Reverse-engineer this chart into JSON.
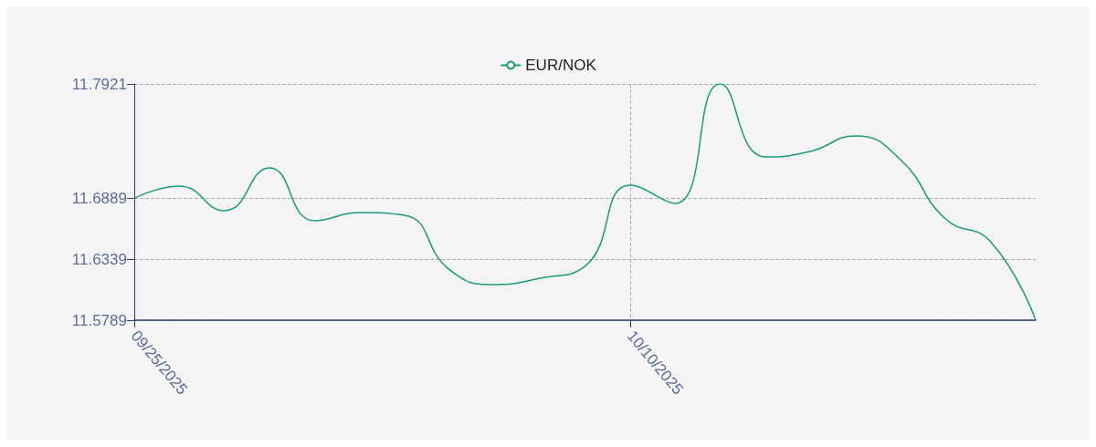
{
  "chart_data": {
    "type": "line",
    "categories": [
      "09/25/2025",
      null,
      null,
      null,
      null,
      null,
      null,
      null,
      null,
      null,
      null,
      "10/10/2025",
      null,
      null,
      null,
      null,
      null,
      null,
      null,
      null,
      null
    ],
    "series": [
      {
        "name": "EUR/NOK",
        "color": "#1a9a7e",
        "values": [
          11.6889,
          11.7,
          11.6777,
          11.7164,
          11.6686,
          11.676,
          11.6736,
          11.6242,
          11.611,
          11.6168,
          11.6275,
          11.7007,
          11.6843,
          11.7921,
          11.7262,
          11.7312,
          11.7452,
          11.7238,
          11.6703,
          11.6497,
          11.5789
        ]
      }
    ],
    "ylim": [
      11.5789,
      11.7921
    ],
    "yticks": [
      11.5789,
      11.6339,
      11.6889,
      11.7921
    ],
    "grid": true,
    "legend": "top",
    "marker": "none",
    "line_style": "solid"
  }
}
